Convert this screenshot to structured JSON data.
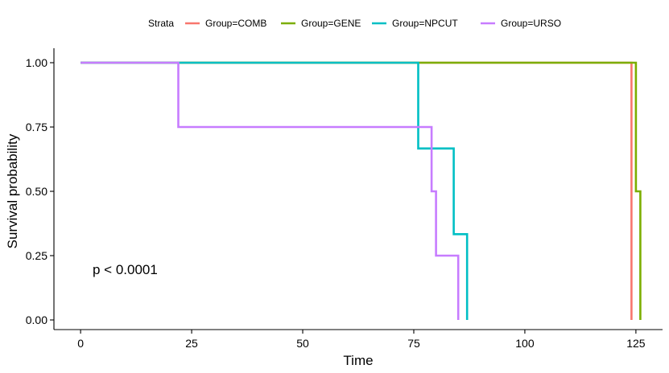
{
  "chart_data": {
    "type": "line",
    "subtype": "kaplan-meier",
    "title": "",
    "xlabel": "Time",
    "ylabel": "Survival probability",
    "xlim": [
      -6,
      131
    ],
    "ylim": [
      0,
      1
    ],
    "xticks": [
      0,
      25,
      50,
      75,
      100,
      125
    ],
    "yticks": [
      0.0,
      0.25,
      0.5,
      0.75,
      1.0
    ],
    "ytick_labels": [
      "0.00",
      "0.25",
      "0.50",
      "0.75",
      "1.00"
    ],
    "grid": false,
    "legend": {
      "position": "top",
      "title": "Strata"
    },
    "annotation": "p < 0.0001",
    "series": [
      {
        "name": "Group=COMB",
        "color": "#F8766D",
        "x": [
          0,
          124,
          124
        ],
        "y": [
          1.0,
          1.0,
          0.0
        ]
      },
      {
        "name": "Group=GENE",
        "color": "#7CAE00",
        "x": [
          0,
          125,
          125,
          126,
          126
        ],
        "y": [
          1.0,
          1.0,
          0.5,
          0.5,
          0.0
        ]
      },
      {
        "name": "Group=NPCUT",
        "color": "#00BFC4",
        "x": [
          0,
          76,
          76,
          84,
          84,
          87,
          87
        ],
        "y": [
          1.0,
          1.0,
          0.6667,
          0.6667,
          0.3333,
          0.3333,
          0.0
        ]
      },
      {
        "name": "Group=URSO",
        "color": "#C77CFF",
        "x": [
          0,
          22,
          22,
          79,
          79,
          80,
          80,
          85,
          85
        ],
        "y": [
          1.0,
          1.0,
          0.75,
          0.75,
          0.5,
          0.5,
          0.25,
          0.25,
          0.0
        ]
      }
    ]
  }
}
